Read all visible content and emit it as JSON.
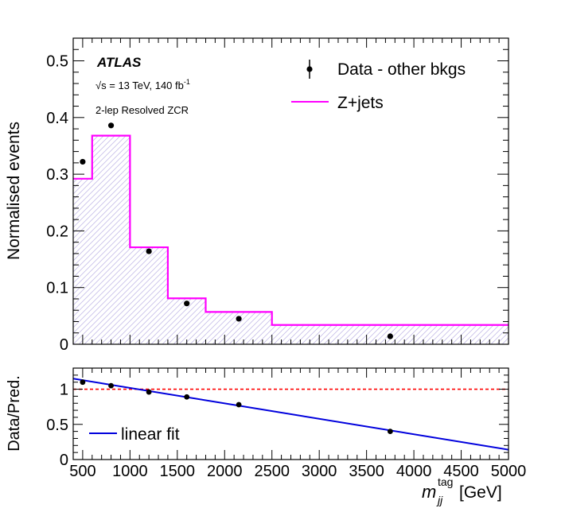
{
  "chart_data": [
    {
      "panel": "main",
      "type": "bar",
      "histogram": true,
      "ylabel": "Normalised events",
      "xlim": [
        400,
        5000
      ],
      "ylim": [
        0,
        0.54
      ],
      "yticks": [
        0,
        0.1,
        0.2,
        0.3,
        0.4,
        0.5
      ],
      "ytick_labels": [
        "0",
        "0.1",
        "0.2",
        "0.3",
        "0.4",
        "0.5"
      ],
      "annotations": {
        "experiment": "ATLAS",
        "energy_lumi": "√s = 13 TeV, 140 fb",
        "lumi_exponent": "-1",
        "region": "2-lep Resolved ZCR"
      },
      "legend": {
        "placement": "top-right",
        "entries": [
          "Data - other bkgs",
          "Z+jets"
        ]
      },
      "series": [
        {
          "name": "Z+jets",
          "style": "histogram",
          "color": "#ff00ff",
          "hatch_color": "#c6bee8",
          "bin_edges": [
            400,
            600,
            1000,
            1400,
            1800,
            2500,
            5000
          ],
          "values": [
            0.292,
            0.368,
            0.171,
            0.081,
            0.057,
            0.034
          ]
        },
        {
          "name": "Data - other bkgs",
          "style": "points",
          "color": "#000000",
          "x": [
            500,
            800,
            1200,
            1600,
            2150,
            3750
          ],
          "y": [
            0.322,
            0.386,
            0.164,
            0.072,
            0.045,
            0.014
          ]
        }
      ]
    },
    {
      "panel": "ratio",
      "type": "scatter",
      "ylabel": "Data/Pred.",
      "xlabel": "m",
      "xlabel_sub": "jj",
      "xlabel_sup": "tag",
      "xlabel_unit": "[GeV]",
      "xlim": [
        400,
        5000
      ],
      "ylim": [
        0,
        1.3
      ],
      "xticks": [
        500,
        1000,
        1500,
        2000,
        2500,
        3000,
        3500,
        4000,
        4500,
        5000
      ],
      "xtick_labels": [
        "500",
        "1000",
        "1500",
        "2000",
        "2500",
        "3000",
        "3500",
        "4000",
        "4500",
        "5000"
      ],
      "yticks": [
        0,
        0.5,
        1
      ],
      "ytick_labels": [
        "0",
        "0.5",
        "1"
      ],
      "reference_line": {
        "y": 1,
        "color": "#ff0000",
        "style": "dashed"
      },
      "legend": {
        "placement": "bottom-left",
        "entries": [
          "linear fit"
        ]
      },
      "series": [
        {
          "name": "Data/Pred.",
          "style": "points",
          "color": "#000000",
          "x": [
            500,
            800,
            1200,
            1600,
            2150,
            3750
          ],
          "y": [
            1.1,
            1.05,
            0.96,
            0.89,
            0.78,
            0.4
          ]
        },
        {
          "name": "linear fit",
          "style": "line",
          "color": "#0000dd",
          "x": [
            400,
            5000
          ],
          "y": [
            1.15,
            0.14
          ]
        }
      ]
    }
  ]
}
